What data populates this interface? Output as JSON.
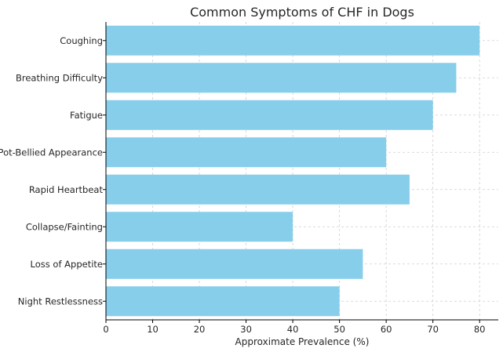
{
  "chart_data": {
    "type": "bar",
    "orientation": "horizontal",
    "title": "Common Symptoms of CHF in Dogs",
    "xlabel": "Approximate Prevalence (%)",
    "ylabel": "",
    "categories": [
      "Coughing",
      "Breathing Difficulty",
      "Fatigue",
      "Pot-Bellied Appearance",
      "Rapid Heartbeat",
      "Collapse/Fainting",
      "Loss of Appetite",
      "Night Restlessness"
    ],
    "values": [
      80,
      75,
      70,
      60,
      65,
      40,
      55,
      50
    ],
    "xlim": [
      0,
      84
    ],
    "xticks": [
      0,
      10,
      20,
      30,
      40,
      50,
      60,
      70,
      80
    ],
    "grid": true,
    "bar_color": "#87CEEB"
  }
}
